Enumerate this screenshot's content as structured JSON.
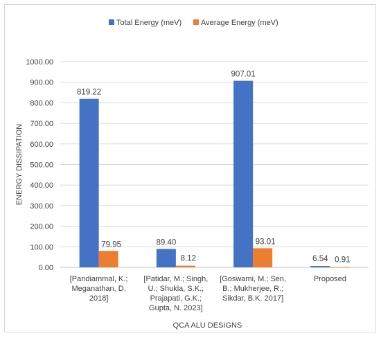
{
  "chart_data": {
    "type": "bar",
    "title": "",
    "xlabel": "QCA ALU DESIGNS",
    "ylabel": "ENERGY DISSIPATION",
    "ylim": [
      0,
      1000
    ],
    "ytick_step": 100,
    "grid": true,
    "legend_position": "top",
    "categories": [
      [
        "[Pandiammal, K.;",
        "Meganathan, D.",
        "2018]"
      ],
      [
        "[Patidar, M.; Singh,",
        "U.; Shukla, S.K.;",
        "Prajapati, G.K.;",
        "Gupta, N. 2023]"
      ],
      [
        "[Goswami, M.; Sen,",
        "B.; Mukherjee, R.;",
        "Sikdar, B.K. 2017]"
      ],
      [
        "Proposed"
      ]
    ],
    "series": [
      {
        "name": "Total Energy (meV)",
        "color": "#4472c4",
        "values": [
          819.22,
          89.4,
          907.01,
          6.54
        ],
        "labels": [
          "819.22",
          "89.40",
          "907.01",
          "6.54"
        ]
      },
      {
        "name": "Average Energy (meV)",
        "color": "#ed7d31",
        "values": [
          79.95,
          8.12,
          93.01,
          0.91
        ],
        "labels": [
          "79.95",
          "8.12",
          "93.01",
          "0.91"
        ]
      }
    ]
  }
}
